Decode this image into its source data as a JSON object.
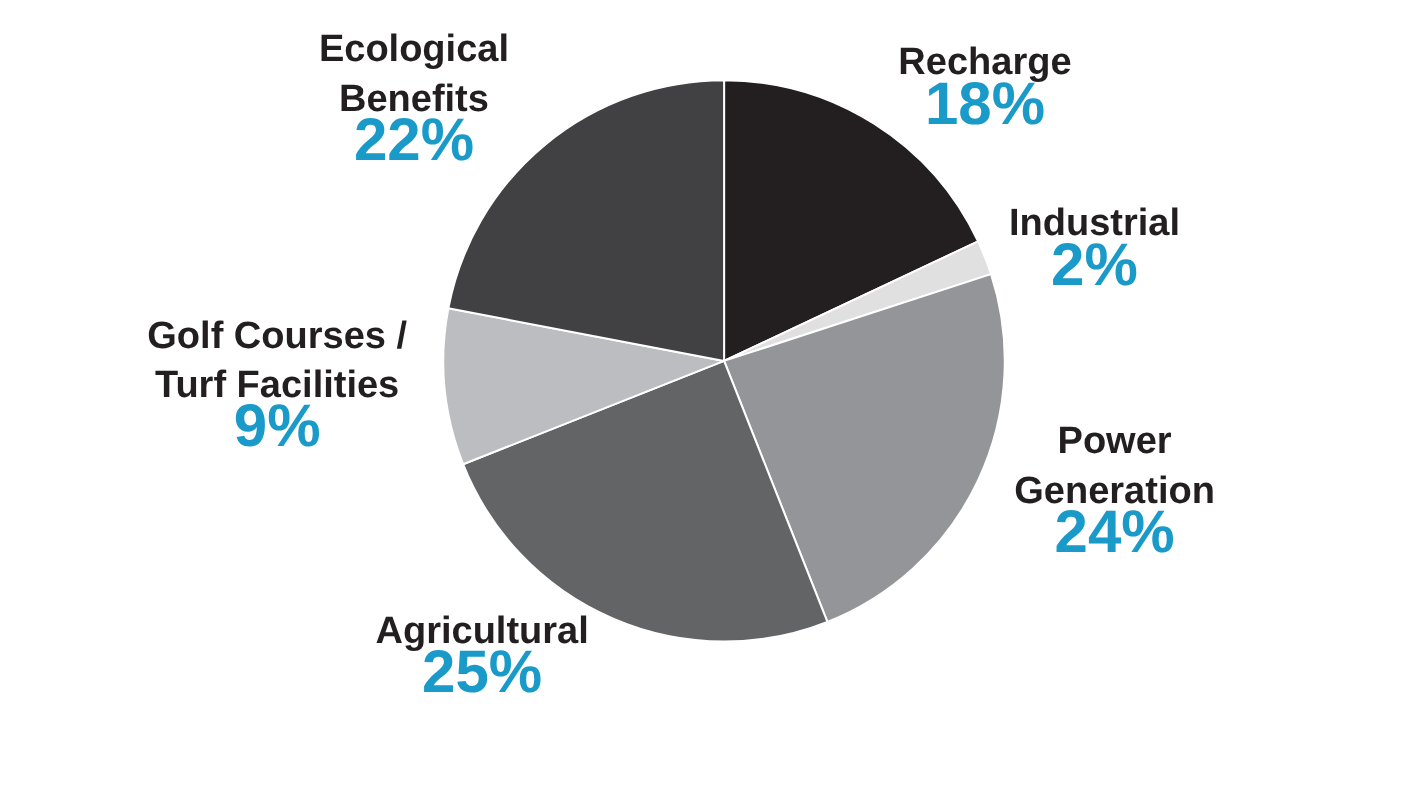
{
  "chart_data": {
    "type": "pie",
    "categories": [
      "Recharge",
      "Industrial",
      "Power\nGeneration",
      "Agricultural",
      "Golf Courses /\nTurf Facilities",
      "Ecological\nBenefits"
    ],
    "values": [
      18,
      2,
      24,
      25,
      9,
      22
    ],
    "value_labels": [
      "18%",
      "2%",
      "24%",
      "25%",
      "9%",
      "22%"
    ],
    "colors": [
      "#231f20",
      "#e0e0e0",
      "#939598",
      "#636466",
      "#bcbdc0",
      "#414042"
    ],
    "legend": false
  }
}
